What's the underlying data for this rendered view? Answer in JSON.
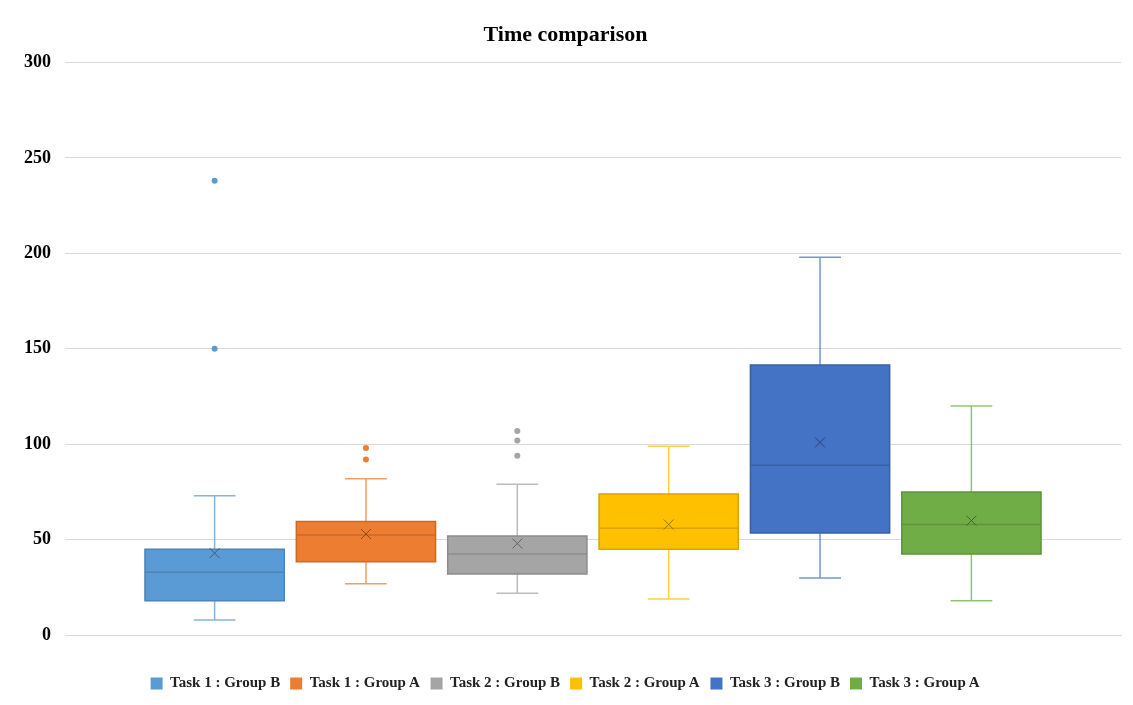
{
  "chart_data": {
    "type": "box",
    "title": "Time comparison",
    "categories": [
      null
    ],
    "ylim": [
      0,
      300
    ],
    "yticks": [
      0,
      50,
      100,
      150,
      200,
      250,
      300
    ],
    "grid": "y",
    "legend": "bottom",
    "series": [
      {
        "name": "Task 1 : Group B",
        "color": "#5b9bd5",
        "boxes": [
          {
            "low": 8,
            "q1": 18,
            "median": 33,
            "q3": 45,
            "high": 73,
            "mean": 43,
            "outliers": [
              150,
              238
            ]
          }
        ]
      },
      {
        "name": "Task 1 : Group A",
        "color": "#ed7d31",
        "boxes": [
          {
            "low": 27,
            "q1": 38.5,
            "median": 52.5,
            "q3": 59.5,
            "high": 82,
            "mean": 53,
            "outliers": [
              92,
              98
            ]
          }
        ]
      },
      {
        "name": "Task 2 : Group B",
        "color": "#a5a5a5",
        "boxes": [
          {
            "low": 22,
            "q1": 32,
            "median": 42.5,
            "q3": 52,
            "high": 79,
            "mean": 48,
            "outliers": [
              94,
              102,
              107
            ]
          }
        ]
      },
      {
        "name": "Task 2 : Group A",
        "color": "#ffc000",
        "boxes": [
          {
            "low": 19,
            "q1": 45,
            "median": 56,
            "q3": 74,
            "high": 99,
            "mean": 58
          }
        ]
      },
      {
        "name": "Task 3 : Group B",
        "color": "#4472c4",
        "boxes": [
          {
            "low": 30,
            "q1": 53.5,
            "median": 89,
            "q3": 141.5,
            "high": 198,
            "mean": 101
          }
        ]
      },
      {
        "name": "Task 3 : Group A",
        "color": "#70ad47",
        "boxes": [
          {
            "low": 18,
            "q1": 42.5,
            "median": 58,
            "q3": 75,
            "high": 120,
            "mean": 60
          }
        ]
      }
    ]
  }
}
